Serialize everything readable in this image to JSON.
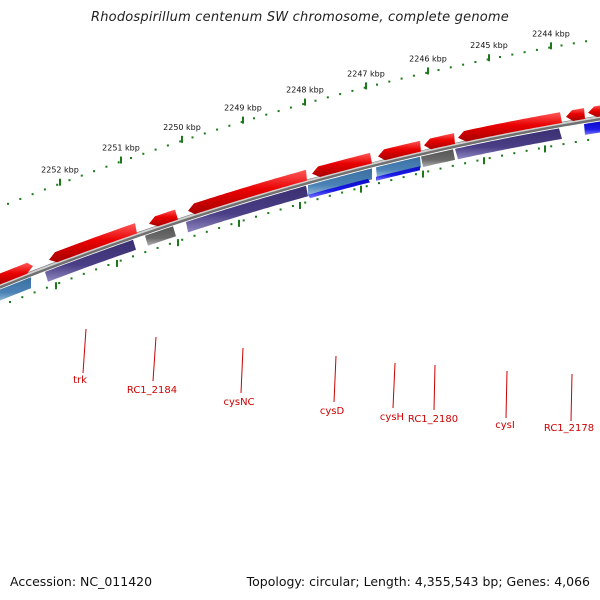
{
  "title": "Rhodospirillum centenum SW chromosome, complete genome",
  "footer": {
    "accession": "Accession: NC_011420",
    "topology": "Topology: circular; Length: 4,355,543 bp; Genes: 4,066"
  },
  "colors": {
    "cds": "#e80000",
    "gene_purple": "#4a3f86",
    "gene_steelblue": "#4b82b6",
    "gene_gray": "#666666",
    "gene_blue": "#1a1ae6",
    "tick": "#1a7a1a",
    "label": "#cc0000",
    "backbone": "#8a8a8a"
  },
  "scale_labels": [
    "2252 kbp",
    "2251 kbp",
    "2250 kbp",
    "2249 kbp",
    "2248 kbp",
    "2247 kbp",
    "2246 kbp",
    "2245 kbp",
    "2244 kbp"
  ],
  "gene_labels": [
    "trk",
    "RC1_2184",
    "cysNC",
    "cysD",
    "cysH",
    "RC1_2180",
    "cysI",
    "RC1_2178"
  ]
}
